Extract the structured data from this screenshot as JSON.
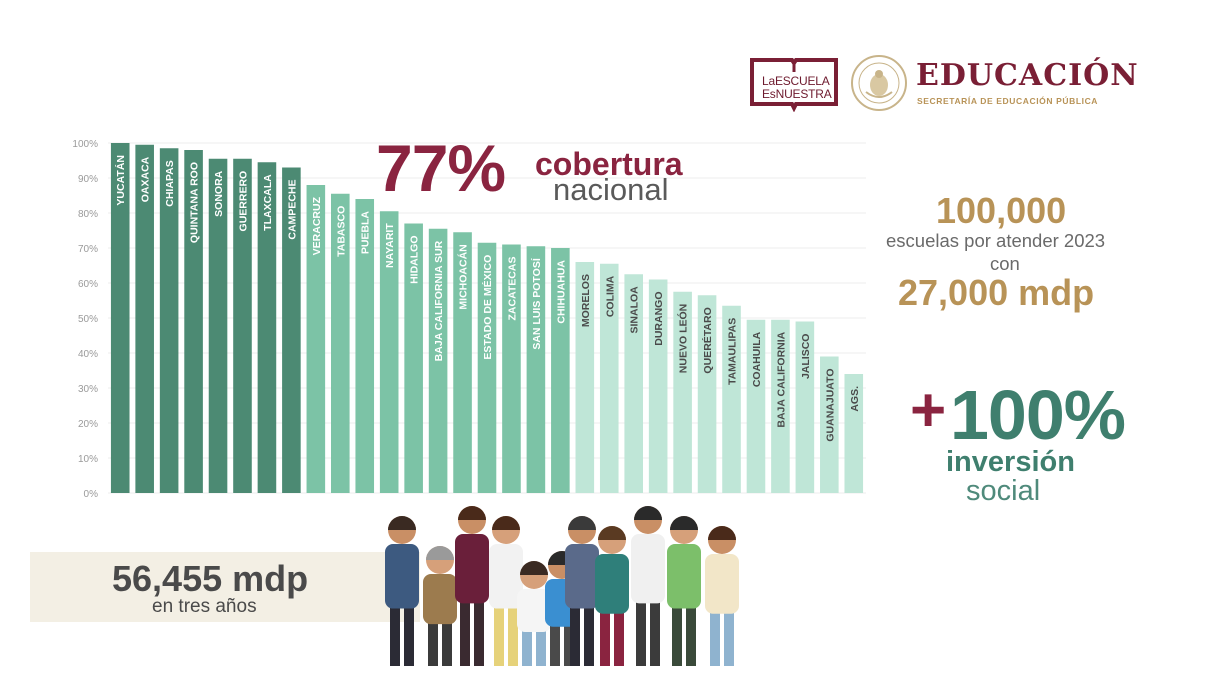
{
  "header": {
    "logo_line1": "LaESCUELA",
    "logo_line2": "EsNUESTRA",
    "title": "EDUCACIÓN",
    "subtitle": "SECRETARÍA DE EDUCACIÓN PÚBLICA"
  },
  "headline": {
    "value": "77%",
    "line1": "cobertura",
    "line2": "nacional"
  },
  "stats": {
    "schools": "100,000",
    "schools_label": "escuelas por atender 2023",
    "connector": "con",
    "budget": "27,000 mdp"
  },
  "investment": {
    "plus": "+",
    "value": "100%",
    "line1": "inversión",
    "line2": "social"
  },
  "money": {
    "amount": "56,455 mdp",
    "label": "en tres años"
  },
  "colors": {
    "dark_green": "#4c8a73",
    "mid_green": "#7cc3a6",
    "light_green": "#bfe6d7",
    "maroon": "#8a2440",
    "gold": "#b89357"
  },
  "chart_data": {
    "type": "bar",
    "ylim": [
      0,
      100
    ],
    "ytick_labels": [
      "0%",
      "10%",
      "20%",
      "30%",
      "40%",
      "50%",
      "60%",
      "70%",
      "80%",
      "90%",
      "100%"
    ],
    "grid": true,
    "categories": [
      "YUCATÁN",
      "OAXACA",
      "CHIAPAS",
      "QUINTANA ROO",
      "SONORA",
      "GUERRERO",
      "TLAXCALA",
      "CAMPECHE",
      "VERACRUZ",
      "TABASCO",
      "PUEBLA",
      "NAYARIT",
      "HIDALGO",
      "BAJA CALIFORNIA SUR",
      "MICHOACÁN",
      "ESTADO DE MÉXICO",
      "ZACATECAS",
      "SAN LUIS POTOSÍ",
      "CHIHUAHUA",
      "MORELOS",
      "COLIMA",
      "SINALOA",
      "DURANGO",
      "NUEVO LEÓN",
      "QUERÉTARO",
      "TAMAULIPAS",
      "COAHUILA",
      "BAJA CALIFORNIA",
      "JALISCO",
      "GUANAJUATO",
      "AGS."
    ],
    "values": [
      100,
      99.5,
      98.5,
      98,
      95.5,
      95.5,
      94.5,
      93,
      88,
      85.5,
      84,
      80.5,
      77,
      75.5,
      74.5,
      71.5,
      71,
      70.5,
      70,
      66,
      65.5,
      62.5,
      61,
      57.5,
      56.5,
      53.5,
      49.5,
      49.5,
      49,
      39,
      34
    ],
    "tiers": [
      "dark",
      "dark",
      "dark",
      "dark",
      "dark",
      "dark",
      "dark",
      "dark",
      "mid",
      "mid",
      "mid",
      "mid",
      "mid",
      "mid",
      "mid",
      "mid",
      "mid",
      "mid",
      "mid",
      "light",
      "light",
      "light",
      "light",
      "light",
      "light",
      "light",
      "light",
      "light",
      "light",
      "light",
      "light"
    ]
  }
}
